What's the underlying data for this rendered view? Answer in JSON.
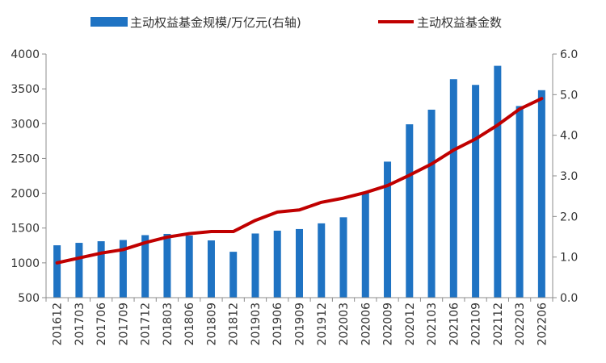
{
  "chart_data": {
    "type": "bar+line",
    "categories": [
      "201612",
      "201703",
      "201706",
      "201709",
      "201712",
      "201803",
      "201806",
      "201809",
      "201812",
      "201903",
      "201906",
      "201909",
      "201912",
      "202003",
      "202006",
      "202009",
      "202012",
      "202103",
      "202106",
      "202109",
      "202112",
      "202203",
      "202206"
    ],
    "series": [
      {
        "name": "主动权益基金规模/万亿元(右轴)",
        "type": "bar",
        "axis": "right",
        "color": "#1f73c3",
        "values": [
          1.29,
          1.35,
          1.39,
          1.42,
          1.54,
          1.57,
          1.53,
          1.41,
          1.13,
          1.58,
          1.65,
          1.69,
          1.83,
          1.98,
          2.59,
          3.35,
          4.27,
          4.63,
          5.38,
          5.24,
          5.71,
          4.72,
          5.11
        ]
      },
      {
        "name": "主动权益基金数",
        "type": "line",
        "axis": "left",
        "color": "#c00000",
        "values": [
          1000,
          1070,
          1140,
          1190,
          1290,
          1370,
          1420,
          1450,
          1450,
          1610,
          1730,
          1760,
          1870,
          1930,
          2010,
          2110,
          2260,
          2420,
          2620,
          2780,
          2980,
          3210,
          3360
        ]
      }
    ],
    "y_left": {
      "min": 500,
      "max": 4000,
      "ticks": [
        "500",
        "1000",
        "1500",
        "2000",
        "2500",
        "3000",
        "3500",
        "4000"
      ]
    },
    "y_right": {
      "min": 0,
      "max": 6,
      "ticks": [
        "0.0",
        "1.0",
        "2.0",
        "3.0",
        "4.0",
        "5.0",
        "6.0"
      ]
    },
    "legend_position": "top",
    "grid": false
  }
}
